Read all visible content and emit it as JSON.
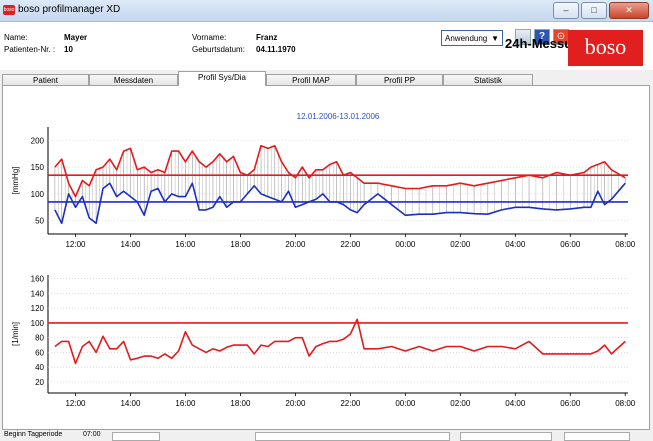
{
  "window": {
    "title": "boso profilmanager XD",
    "icon_label": "boso",
    "minimize": "–",
    "maximize": "□",
    "close": "✕"
  },
  "patient": {
    "name_label": "Name:",
    "name": "Mayer",
    "number_label": "Patienten-Nr. :",
    "number": "10",
    "firstname_label": "Vorname:",
    "firstname": "Franz",
    "dob_label": "Geburtsdatum:",
    "dob": "04.11.1970"
  },
  "toolbar": {
    "app_select": "Anwendung",
    "mode": "24h-Messung",
    "logo": "boso",
    "icons": [
      "print-icon",
      "help-icon",
      "exit-icon"
    ]
  },
  "tabs": [
    "Patient",
    "Messdaten",
    "Profil Sys/Dia",
    "Profil MAP",
    "Profil PP",
    "Statistik"
  ],
  "active_tab": 2,
  "colors": {
    "systolic": "#e31b1b",
    "diastolic": "#1c2fc4",
    "title": "#2d4fd1",
    "logo": "#e21f1f"
  },
  "chart_data": [
    {
      "type": "line",
      "title": "12.01.2006-13.01.2006",
      "ylabel": "[mmHg]",
      "ylim": [
        25,
        225
      ],
      "yticks": [
        50,
        100,
        150,
        200
      ],
      "x_tick_labels": [
        "12:00",
        "14:00",
        "16:00",
        "18:00",
        "20:00",
        "22:00",
        "00:00",
        "02:00",
        "04:00",
        "06:00",
        "08:00"
      ],
      "x_hours_range": [
        11,
        32.1
      ],
      "thresholds": {
        "systolic": 135,
        "diastolic": 85
      },
      "grid": true,
      "series": [
        {
          "key": "systolic",
          "x": [
            11.25,
            11.5,
            11.75,
            12.0,
            12.25,
            12.5,
            12.75,
            13.0,
            13.25,
            13.5,
            13.75,
            14.0,
            14.25,
            14.5,
            14.75,
            15.0,
            15.25,
            15.5,
            15.75,
            16.0,
            16.25,
            16.5,
            16.75,
            17.0,
            17.25,
            17.5,
            17.75,
            18.0,
            18.25,
            18.5,
            18.75,
            19.0,
            19.25,
            19.5,
            19.75,
            20.0,
            20.25,
            20.5,
            20.75,
            21.0,
            21.25,
            21.5,
            21.75,
            22.0,
            22.25,
            22.5,
            23.0,
            23.5,
            24.0,
            24.5,
            25.0,
            25.5,
            26.0,
            26.5,
            27.0,
            27.5,
            28.0,
            28.5,
            29.0,
            29.5,
            30.0,
            30.5,
            30.75,
            31.0,
            31.25,
            31.5,
            32.0
          ],
          "values": [
            150,
            165,
            120,
            95,
            125,
            115,
            145,
            150,
            165,
            145,
            180,
            185,
            145,
            150,
            140,
            145,
            140,
            180,
            180,
            160,
            180,
            160,
            150,
            160,
            175,
            160,
            170,
            140,
            135,
            145,
            190,
            185,
            190,
            160,
            140,
            130,
            150,
            130,
            145,
            145,
            155,
            160,
            135,
            140,
            130,
            120,
            120,
            115,
            110,
            110,
            115,
            115,
            120,
            115,
            120,
            125,
            130,
            135,
            130,
            140,
            135,
            140,
            150,
            155,
            160,
            145,
            130
          ]
        },
        {
          "key": "diastolic",
          "x": [
            11.25,
            11.5,
            11.75,
            12.0,
            12.25,
            12.5,
            12.75,
            13.0,
            13.25,
            13.5,
            13.75,
            14.0,
            14.25,
            14.5,
            14.75,
            15.0,
            15.25,
            15.5,
            15.75,
            16.0,
            16.25,
            16.5,
            16.75,
            17.0,
            17.25,
            17.5,
            17.75,
            18.0,
            18.25,
            18.5,
            18.75,
            19.0,
            19.25,
            19.5,
            19.75,
            20.0,
            20.25,
            20.5,
            20.75,
            21.0,
            21.25,
            21.5,
            21.75,
            22.0,
            22.25,
            22.5,
            23.0,
            23.5,
            24.0,
            24.5,
            25.0,
            25.5,
            26.0,
            26.5,
            27.0,
            27.5,
            28.0,
            28.5,
            29.0,
            29.5,
            30.0,
            30.5,
            30.75,
            31.0,
            31.25,
            31.5,
            32.0
          ],
          "values": [
            70,
            45,
            100,
            75,
            95,
            55,
            45,
            110,
            120,
            95,
            105,
            95,
            85,
            60,
            105,
            110,
            85,
            100,
            95,
            95,
            120,
            70,
            70,
            75,
            95,
            75,
            85,
            85,
            100,
            115,
            100,
            95,
            90,
            85,
            105,
            75,
            80,
            85,
            90,
            100,
            85,
            85,
            80,
            70,
            65,
            80,
            100,
            80,
            60,
            62,
            62,
            65,
            65,
            63,
            62,
            70,
            75,
            75,
            72,
            70,
            72,
            75,
            75,
            105,
            80,
            90,
            120
          ]
        }
      ]
    },
    {
      "type": "line",
      "title": "",
      "ylabel": "[1/min]",
      "ylim": [
        5,
        165
      ],
      "yticks": [
        20,
        40,
        60,
        80,
        100,
        120,
        140,
        160
      ],
      "x_tick_labels": [
        "12:00",
        "14:00",
        "16:00",
        "18:00",
        "20:00",
        "22:00",
        "00:00",
        "02:00",
        "04:00",
        "06:00",
        "08:00"
      ],
      "x_hours_range": [
        11,
        32.1
      ],
      "thresholds": {
        "pulse": 100
      },
      "grid": true,
      "series": [
        {
          "key": "pulse",
          "x": [
            11.25,
            11.5,
            11.75,
            12.0,
            12.25,
            12.5,
            12.75,
            13.0,
            13.25,
            13.5,
            13.75,
            14.0,
            14.25,
            14.5,
            14.75,
            15.0,
            15.25,
            15.5,
            15.75,
            16.0,
            16.25,
            16.5,
            16.75,
            17.0,
            17.25,
            17.5,
            17.75,
            18.0,
            18.25,
            18.5,
            18.75,
            19.0,
            19.25,
            19.5,
            19.75,
            20.0,
            20.25,
            20.5,
            20.75,
            21.0,
            21.25,
            21.5,
            21.75,
            22.0,
            22.25,
            22.5,
            23.0,
            23.5,
            24.0,
            24.5,
            25.0,
            25.5,
            26.0,
            26.5,
            27.0,
            27.5,
            28.0,
            28.5,
            29.0,
            29.5,
            30.0,
            30.5,
            30.75,
            31.0,
            31.25,
            31.5,
            32.0
          ],
          "values": [
            68,
            75,
            75,
            45,
            68,
            75,
            60,
            82,
            65,
            65,
            75,
            50,
            52,
            55,
            55,
            52,
            58,
            52,
            62,
            88,
            70,
            65,
            60,
            65,
            62,
            67,
            70,
            70,
            70,
            58,
            70,
            68,
            75,
            75,
            75,
            80,
            80,
            55,
            68,
            72,
            75,
            75,
            78,
            85,
            105,
            65,
            65,
            68,
            62,
            68,
            62,
            68,
            68,
            62,
            68,
            68,
            65,
            75,
            58,
            58,
            58,
            58,
            58,
            62,
            70,
            58,
            75
          ]
        }
      ]
    }
  ],
  "footer": {
    "begin_label": "Beginn Tagperiode",
    "begin_value": "07:00"
  }
}
